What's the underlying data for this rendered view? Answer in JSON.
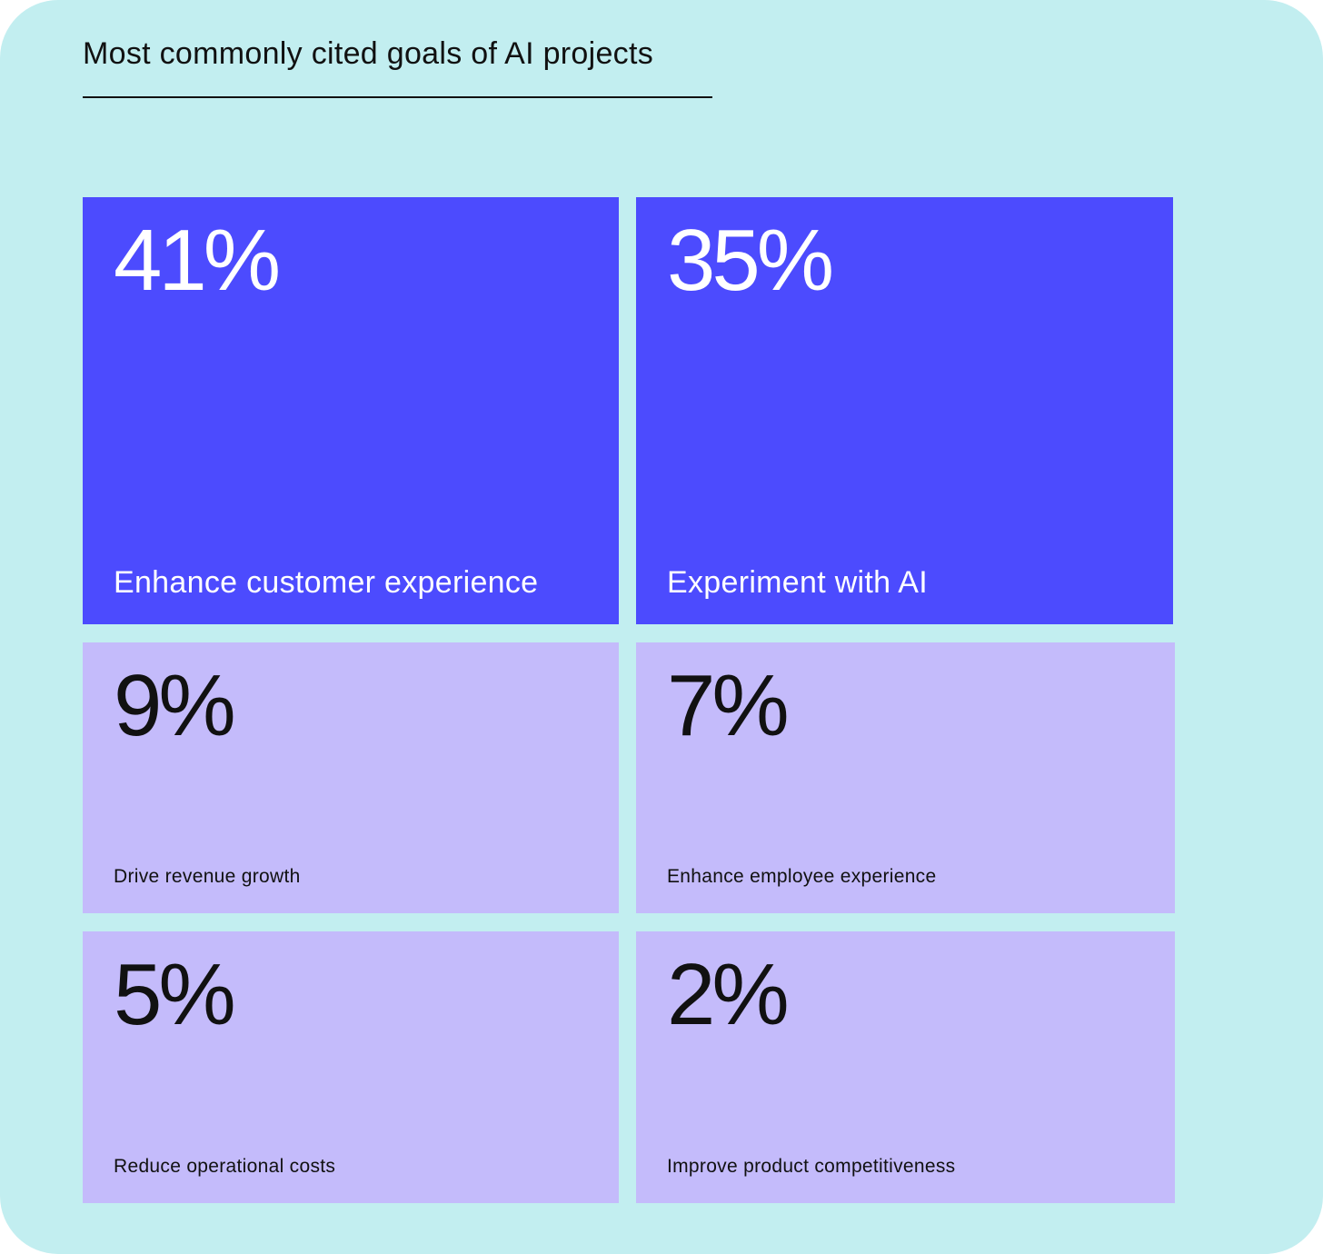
{
  "chart_data": {
    "type": "treemap",
    "title": "Most commonly cited goals of AI projects",
    "unit": "%",
    "items": [
      {
        "label": "Enhance customer experience",
        "value": 41,
        "display": "41%",
        "tier": "primary"
      },
      {
        "label": "Experiment with AI",
        "value": 35,
        "display": "35%",
        "tier": "primary"
      },
      {
        "label": "Drive revenue growth",
        "value": 9,
        "display": "9%",
        "tier": "secondary"
      },
      {
        "label": "Enhance employee experience",
        "value": 7,
        "display": "7%",
        "tier": "secondary"
      },
      {
        "label": "Reduce operational costs",
        "value": 5,
        "display": "5%",
        "tier": "secondary"
      },
      {
        "label": "Improve product competitiveness",
        "value": 2,
        "display": "2%",
        "tier": "secondary"
      }
    ]
  },
  "colors": {
    "background": "#c2eef0",
    "primary_tile": "#4c4bfe",
    "primary_text": "#ffffff",
    "secondary_tile": "#c4bbfb",
    "secondary_text": "#111111"
  }
}
